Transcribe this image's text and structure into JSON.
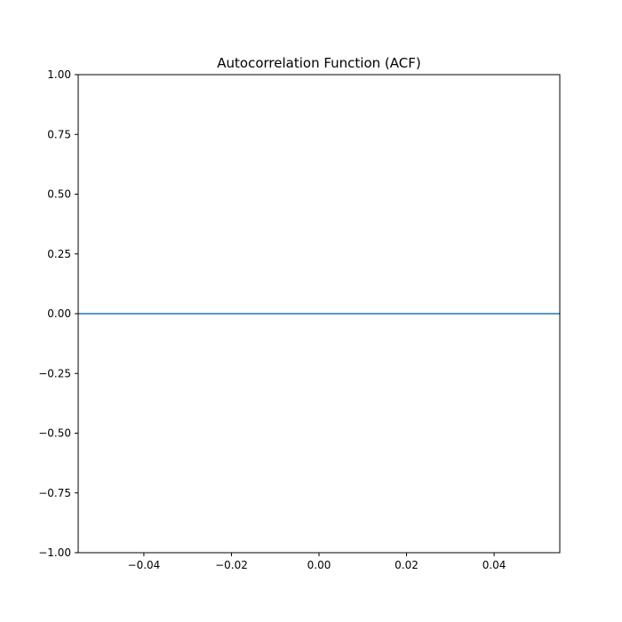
{
  "chart_data": {
    "type": "line",
    "title": "Autocorrelation Function (ACF)",
    "xlabel": "",
    "ylabel": "",
    "xlim": [
      -0.055,
      0.055
    ],
    "ylim": [
      -1.0,
      1.0
    ],
    "x_ticks": [
      -0.04,
      -0.02,
      0.0,
      0.02,
      0.04
    ],
    "x_tick_labels": [
      "−0.04",
      "−0.02",
      "0.00",
      "0.02",
      "0.04"
    ],
    "y_ticks": [
      1.0,
      0.75,
      0.5,
      0.25,
      0.0,
      -0.25,
      -0.5,
      -0.75,
      -1.0
    ],
    "y_tick_labels": [
      "1.00",
      "0.75",
      "0.50",
      "0.25",
      "0.00",
      "−0.25",
      "−0.50",
      "−0.75",
      "−1.00"
    ],
    "grid": false,
    "legend": "none",
    "series": [
      {
        "x": [
          -0.055,
          0.055
        ],
        "y": [
          0.0,
          0.0
        ],
        "color": "#1f77b4"
      }
    ]
  }
}
